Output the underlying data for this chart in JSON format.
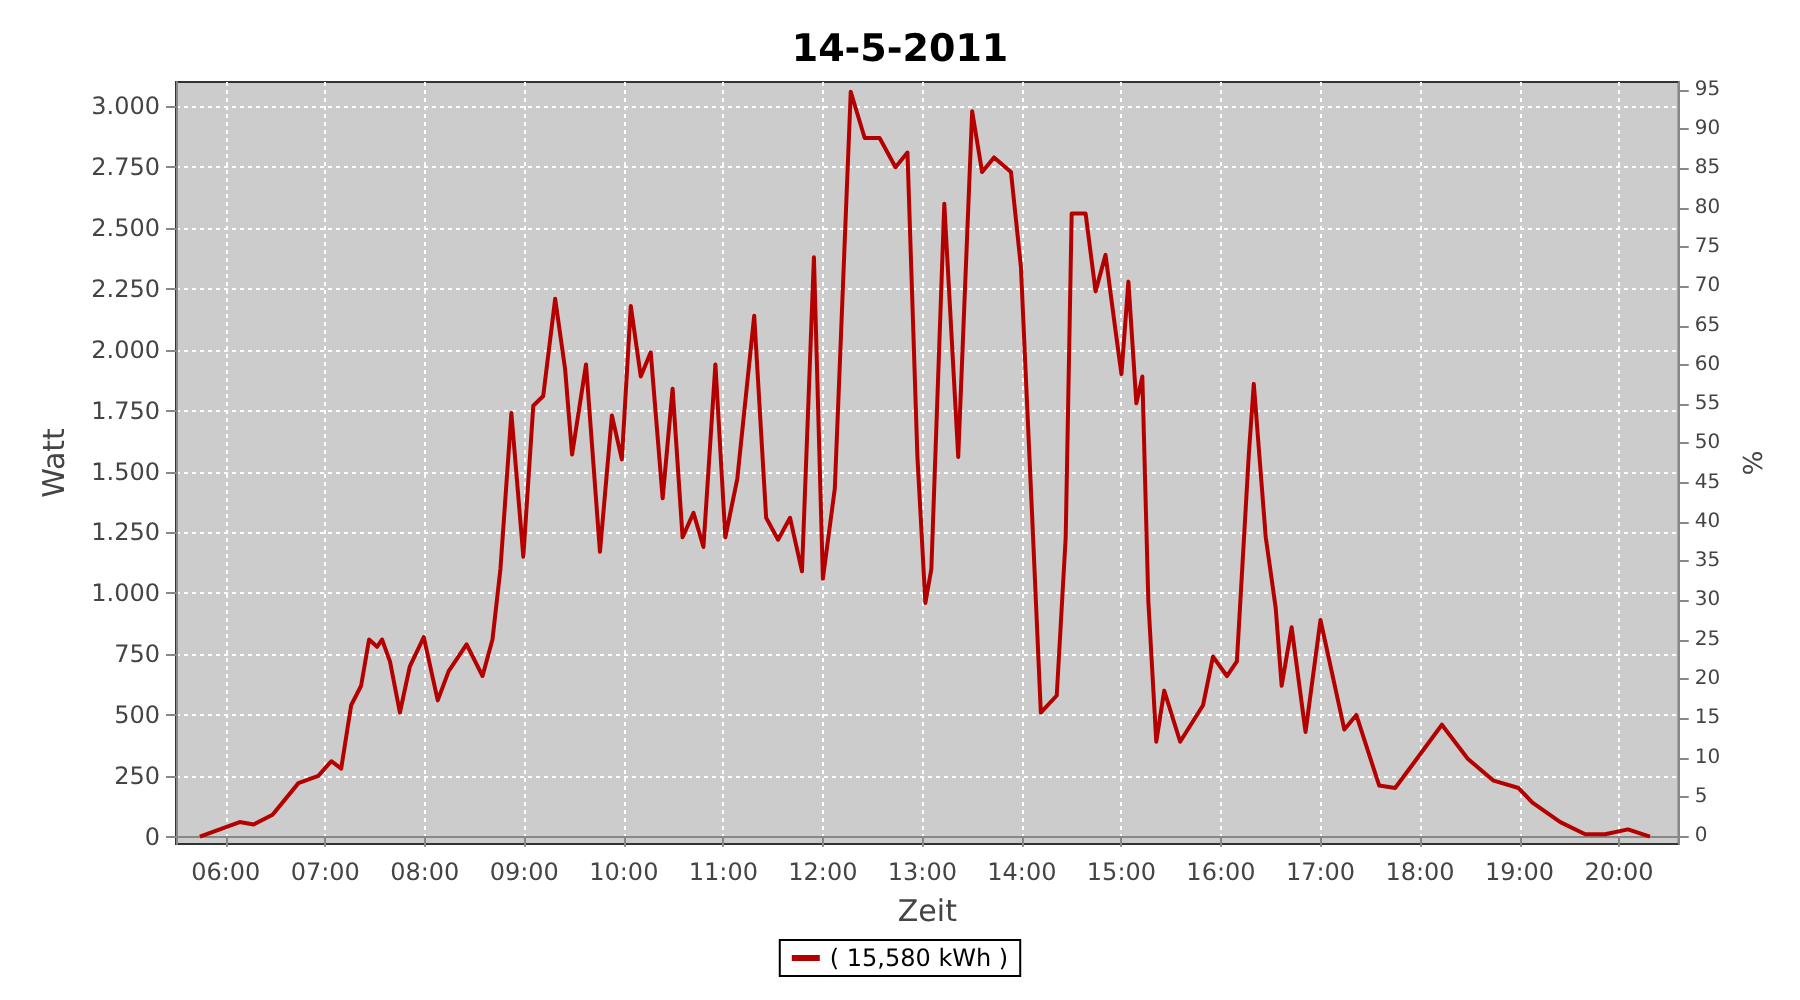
{
  "chart_data": {
    "type": "line",
    "title": "14-5-2011",
    "xlabel": "Zeit",
    "ylabel": "Watt",
    "y2label": "%",
    "x": [
      5.74,
      5.94,
      6.14,
      6.28,
      6.47,
      6.73,
      6.93,
      7.06,
      7.16,
      7.26,
      7.36,
      7.44,
      7.52,
      7.57,
      7.65,
      7.75,
      7.85,
      7.99,
      8.13,
      8.24,
      8.42,
      8.58,
      8.68,
      8.76,
      8.87,
      8.99,
      9.09,
      9.19,
      9.31,
      9.41,
      9.48,
      9.62,
      9.76,
      9.88,
      9.98,
      10.07,
      10.17,
      10.27,
      10.39,
      10.49,
      10.59,
      10.7,
      10.8,
      10.92,
      11.02,
      11.14,
      11.31,
      11.43,
      11.55,
      11.67,
      11.79,
      11.91,
      12.0,
      12.12,
      12.28,
      12.42,
      12.57,
      12.73,
      12.85,
      12.95,
      13.03,
      13.09,
      13.22,
      13.36,
      13.5,
      13.6,
      13.72,
      13.89,
      13.99,
      14.11,
      14.19,
      14.35,
      14.44,
      14.5,
      14.64,
      14.74,
      14.84,
      14.94,
      15.0,
      15.07,
      15.15,
      15.21,
      15.27,
      15.35,
      15.43,
      15.59,
      15.82,
      15.92,
      16.06,
      16.16,
      16.28,
      16.33,
      16.45,
      16.55,
      16.61,
      16.71,
      16.85,
      17.0,
      17.24,
      17.36,
      17.59,
      17.75,
      17.95,
      18.22,
      18.48,
      18.74,
      18.99,
      19.13,
      19.41,
      19.66,
      19.86,
      20.09,
      20.31
    ],
    "series": [
      {
        "name": "( 15,580 kWh )",
        "color": "#b50000",
        "values": [
          0,
          30,
          60,
          50,
          90,
          220,
          250,
          310,
          280,
          540,
          620,
          810,
          780,
          810,
          720,
          510,
          700,
          820,
          560,
          680,
          790,
          660,
          810,
          1100,
          1740,
          1150,
          1770,
          1810,
          2210,
          1920,
          1570,
          1940,
          1170,
          1730,
          1550,
          2180,
          1890,
          1990,
          1390,
          1840,
          1230,
          1330,
          1190,
          1940,
          1230,
          1470,
          2140,
          1310,
          1220,
          1310,
          1090,
          2380,
          1060,
          1430,
          3060,
          2870,
          2870,
          2750,
          2810,
          1560,
          960,
          1100,
          2600,
          1560,
          2980,
          2730,
          2790,
          2730,
          2340,
          1250,
          510,
          580,
          1230,
          2560,
          2560,
          2240,
          2390,
          2080,
          1900,
          2280,
          1780,
          1890,
          970,
          390,
          600,
          390,
          540,
          740,
          660,
          720,
          1570,
          1860,
          1230,
          940,
          620,
          860,
          430,
          890,
          440,
          500,
          210,
          200,
          310,
          460,
          320,
          230,
          200,
          140,
          60,
          10,
          10,
          30,
          0
        ]
      }
    ],
    "xlim": [
      5.5,
      20.6
    ],
    "xticks": [
      {
        "value": 6,
        "label": "06:00"
      },
      {
        "value": 7,
        "label": "07:00"
      },
      {
        "value": 8,
        "label": "08:00"
      },
      {
        "value": 9,
        "label": "09:00"
      },
      {
        "value": 10,
        "label": "10:00"
      },
      {
        "value": 11,
        "label": "11:00"
      },
      {
        "value": 12,
        "label": "12:00"
      },
      {
        "value": 13,
        "label": "13:00"
      },
      {
        "value": 14,
        "label": "14:00"
      },
      {
        "value": 15,
        "label": "15:00"
      },
      {
        "value": 16,
        "label": "16:00"
      },
      {
        "value": 17,
        "label": "17:00"
      },
      {
        "value": 18,
        "label": "18:00"
      },
      {
        "value": 19,
        "label": "19:00"
      },
      {
        "value": 20,
        "label": "20:00"
      }
    ],
    "ylim": [
      -30,
      3100
    ],
    "yticks": [
      0,
      {
        "value": 250,
        "label": "250"
      },
      {
        "value": 500,
        "label": "500"
      },
      {
        "value": 750,
        "label": "750"
      },
      {
        "value": 1000,
        "label": "1.000"
      },
      {
        "value": 1250,
        "label": "1.250"
      },
      {
        "value": 1500,
        "label": "1.500"
      },
      {
        "value": 1750,
        "label": "1.750"
      },
      {
        "value": 2000,
        "label": "2.000"
      },
      {
        "value": 2250,
        "label": "2.250"
      },
      {
        "value": 2500,
        "label": "2.500"
      },
      {
        "value": 2750,
        "label": "2.750"
      },
      {
        "value": 3000,
        "label": "3.000"
      }
    ],
    "y2lim": [
      -1,
      96
    ],
    "y2ticks": [
      0,
      5,
      10,
      15,
      20,
      25,
      30,
      35,
      40,
      45,
      50,
      55,
      60,
      65,
      70,
      75,
      80,
      85,
      90,
      95
    ],
    "grid": true,
    "legend": "bottom",
    "marker": "none",
    "line_style": "solid"
  }
}
